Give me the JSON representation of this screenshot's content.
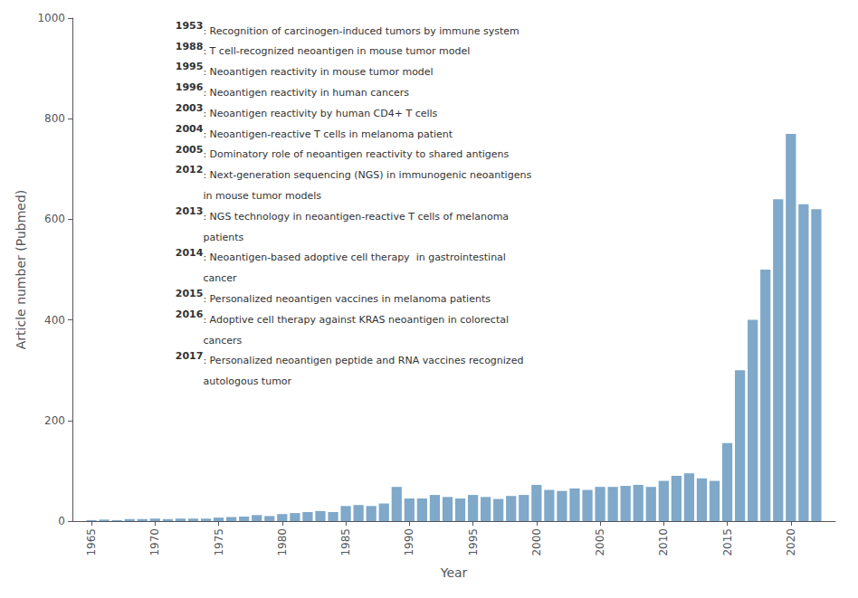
{
  "chart_data": {
    "type": "bar",
    "x": [
      1965,
      1966,
      1967,
      1968,
      1969,
      1970,
      1971,
      1972,
      1973,
      1974,
      1975,
      1976,
      1977,
      1978,
      1979,
      1980,
      1981,
      1982,
      1983,
      1984,
      1985,
      1986,
      1987,
      1988,
      1989,
      1990,
      1991,
      1992,
      1993,
      1994,
      1995,
      1996,
      1997,
      1998,
      1999,
      2000,
      2001,
      2002,
      2003,
      2004,
      2005,
      2006,
      2007,
      2008,
      2009,
      2010,
      2011,
      2012,
      2013,
      2014,
      2015,
      2016,
      2017,
      2018,
      2019,
      2020,
      2021,
      2022
    ],
    "values": [
      2,
      3,
      2,
      4,
      4,
      5,
      4,
      5,
      5,
      5,
      7,
      8,
      9,
      12,
      10,
      14,
      16,
      18,
      20,
      18,
      30,
      32,
      30,
      35,
      68,
      45,
      45,
      52,
      48,
      45,
      52,
      48,
      44,
      50,
      52,
      72,
      62,
      60,
      65,
      62,
      68,
      68,
      70,
      72,
      68,
      80,
      90,
      95,
      85,
      80,
      155,
      300,
      400,
      500,
      640,
      770,
      630,
      620
    ],
    "color": "#7fa8c9",
    "xlabel": "Year",
    "ylabel": "Article number (Pubmed)",
    "xlim": [
      1963.5,
      2023.5
    ],
    "xticks": [
      1965,
      1970,
      1975,
      1980,
      1985,
      1990,
      1995,
      2000,
      2005,
      2010,
      2015,
      2020
    ],
    "ylim": [
      0,
      1000
    ],
    "yticks": [
      0,
      200,
      400,
      600,
      800,
      1000
    ],
    "grid": false,
    "annotations": [
      {
        "label": "1953",
        "text": ": Recognition of carcinogen-induced tumors by immune system"
      },
      {
        "label": "1988",
        "text": ": T cell-recognized neoantigen in mouse tumor model"
      },
      {
        "label": "1995",
        "text": ": Neoantigen reactivity in mouse tumor model"
      },
      {
        "label": "1996",
        "text": ": Neoantigen reactivity in human cancers"
      },
      {
        "label": "2003",
        "text": ": Neoantigen reactivity by human CD4+ T cells"
      },
      {
        "label": "2004",
        "text": ": Neoantigen-reactive T cells in melanoma patient"
      },
      {
        "label": "2005",
        "text": ": Dominatory role of neoantigen reactivity to shared antigens"
      },
      {
        "label": "2012",
        "text": ": Next-generation sequencing (NGS) in immunogenic neoantigens\nin mouse tumor models"
      },
      {
        "label": "2013",
        "text": ": NGS technology in neoantigen-reactive T cells of melanoma\npatients"
      },
      {
        "label": "2014",
        "text": ": Neoantigen-based adoptive cell therapy  in gastrointestinal\ncancer"
      },
      {
        "label": "2015",
        "text": ": Personalized neoantigen vaccines in melanoma patients"
      },
      {
        "label": "2016",
        "text": ": Adoptive cell therapy against KRAS neoantigen in colorectal\ncancers"
      },
      {
        "label": "2017",
        "text": ": Personalized neoantigen peptide and RNA vaccines recognized\nautologous tumor"
      }
    ]
  }
}
